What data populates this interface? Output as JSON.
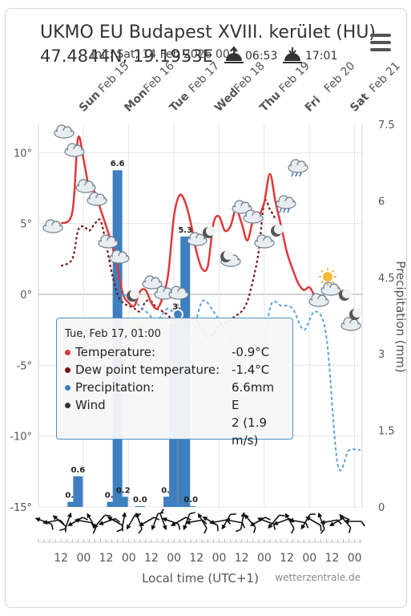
{
  "header": {
    "title": "UKMO EU Budapest XVIII. kerület (HU)",
    "coords": "47.4844N, 19.1953E",
    "init": "Init: Sat, 14 Feb 2026 00Z",
    "sunrise": "06:53",
    "sunset": "17:01",
    "menu_icon": "hamburger-menu-icon"
  },
  "tooltip": {
    "date": "Tue, Feb 17, 01:00",
    "temp_label": "Temperature:",
    "temp_value": "-0.9°C",
    "dew_label": "Dew point temperature:",
    "dew_value": "-1.4°C",
    "precip_label": "Precipitation:",
    "precip_value": "6.6mm",
    "wind_label": "Wind",
    "wind_dir": "E",
    "wind_speed": "2 (1.9 m/s)"
  },
  "chart_data": {
    "type": "line",
    "xlabel": "Local time (UTC+1)",
    "ylabel": "",
    "ylabel_right": "Precipitation (mm)",
    "source": "wetterzentrale.de",
    "ylim": [
      -15,
      12
    ],
    "ylim_right": [
      0,
      7.5
    ],
    "y_ticks": [
      "10°",
      "5°",
      "0°",
      "-5°",
      "-10°",
      "-15°"
    ],
    "y_tick_values": [
      10,
      5,
      0,
      -5,
      -10,
      -15
    ],
    "y_right_ticks": [
      "7.5",
      "6",
      "4.5",
      "3",
      "1.5",
      "0"
    ],
    "y_right_tick_values": [
      7.5,
      6,
      4.5,
      3,
      1.5,
      0
    ],
    "day_labels": [
      {
        "day": "Sun",
        "date": "Feb 15"
      },
      {
        "day": "Mon",
        "date": "Feb 16"
      },
      {
        "day": "Tue",
        "date": "Feb 17"
      },
      {
        "day": "Wed",
        "date": "Feb 18"
      },
      {
        "day": "Thu",
        "date": "Feb 19"
      },
      {
        "day": "Fri",
        "date": "Feb 20"
      },
      {
        "day": "Sat",
        "date": "Feb 21"
      }
    ],
    "x_tick_labels": [
      "12",
      "00",
      "12",
      "00",
      "12",
      "00",
      "12",
      "00",
      "12",
      "00",
      "12",
      "00",
      "12",
      "00"
    ],
    "x_tick_hours": [
      12,
      24,
      36,
      48,
      60,
      72,
      84,
      96,
      108,
      120,
      132,
      144,
      156,
      168
    ],
    "series": [
      {
        "name": "Temperature",
        "color": "#e03838",
        "x": [
          0,
          6,
          9,
          12,
          15,
          18,
          21,
          24,
          27,
          30,
          33,
          36,
          39,
          42,
          45,
          48,
          51,
          54,
          57,
          60,
          63,
          66,
          69,
          72,
          75,
          78,
          81,
          84,
          87,
          90,
          93,
          96,
          99,
          102,
          105,
          108,
          111,
          114,
          117,
          120,
          123,
          126,
          129,
          132,
          135
        ],
        "y": [
          5.0,
          5.8,
          11.0,
          9.5,
          7.5,
          7.2,
          6.0,
          4.8,
          3.5,
          1.8,
          0.0,
          -0.6,
          -0.8,
          0.2,
          0.3,
          -0.6,
          -1.0,
          -0.2,
          1.5,
          5.5,
          7.0,
          6.5,
          5.0,
          3.0,
          1.8,
          2.0,
          5.0,
          5.5,
          4.5,
          4.8,
          6.0,
          5.0,
          3.8,
          5.2,
          5.5,
          6.5,
          8.5,
          6.5,
          4.8,
          3.0,
          1.8,
          0.8,
          0.3,
          0.5,
          -0.2
        ]
      },
      {
        "name": "Dew point temperature",
        "color": "#7a1313",
        "x": [
          0,
          6,
          9,
          12,
          15,
          18,
          21,
          24,
          27,
          30,
          33,
          36,
          39,
          42,
          45,
          48,
          51,
          54,
          57,
          60,
          63,
          66,
          69,
          72,
          75,
          78,
          81,
          84,
          87,
          90,
          93,
          96,
          99,
          102,
          105,
          108,
          111,
          114
        ],
        "y": [
          2.0,
          2.5,
          4.5,
          4.8,
          4.5,
          5.0,
          5.2,
          3.5,
          1.5,
          0.0,
          -0.6,
          -0.8,
          -1.0,
          -1.2,
          -0.5,
          -0.5,
          -1.0,
          -1.2,
          -1.5,
          -2.0,
          -2.2,
          -2.0,
          -1.8,
          -1.8,
          -2.5,
          -3.0,
          -2.8,
          -2.2,
          -2.0,
          -1.8,
          -1.5,
          -1.2,
          -0.5,
          1.0,
          3.0,
          6.5,
          6.0,
          5.3
        ]
      }
    ],
    "precipitation": [
      {
        "hour": 6,
        "value": 0.1,
        "label": "0.1"
      },
      {
        "hour": 9,
        "value": 0.6,
        "label": "0.6"
      },
      {
        "hour": 27,
        "value": 0.1,
        "label": "0.1"
      },
      {
        "hour": 30,
        "value": 6.6,
        "label": "6.6"
      },
      {
        "hour": 33,
        "value": 0.2,
        "label": "0.2"
      },
      {
        "hour": 42,
        "value": 0.0,
        "label": "0.0"
      },
      {
        "hour": 57,
        "value": 0.2,
        "label": "0.2"
      },
      {
        "hour": 60,
        "value": 3.6,
        "label": ""
      },
      {
        "hour": 63,
        "value": 3.8,
        "label": "3.8"
      },
      {
        "hour": 66,
        "value": 5.3,
        "label": "5.3"
      },
      {
        "hour": 69,
        "value": 0.0,
        "label": "0.0"
      }
    ],
    "colors": {
      "temperature": "#e03838",
      "dewpoint": "#7a1313",
      "precipitation": "#3d7fbf",
      "grid": "#e4e4e4"
    }
  }
}
